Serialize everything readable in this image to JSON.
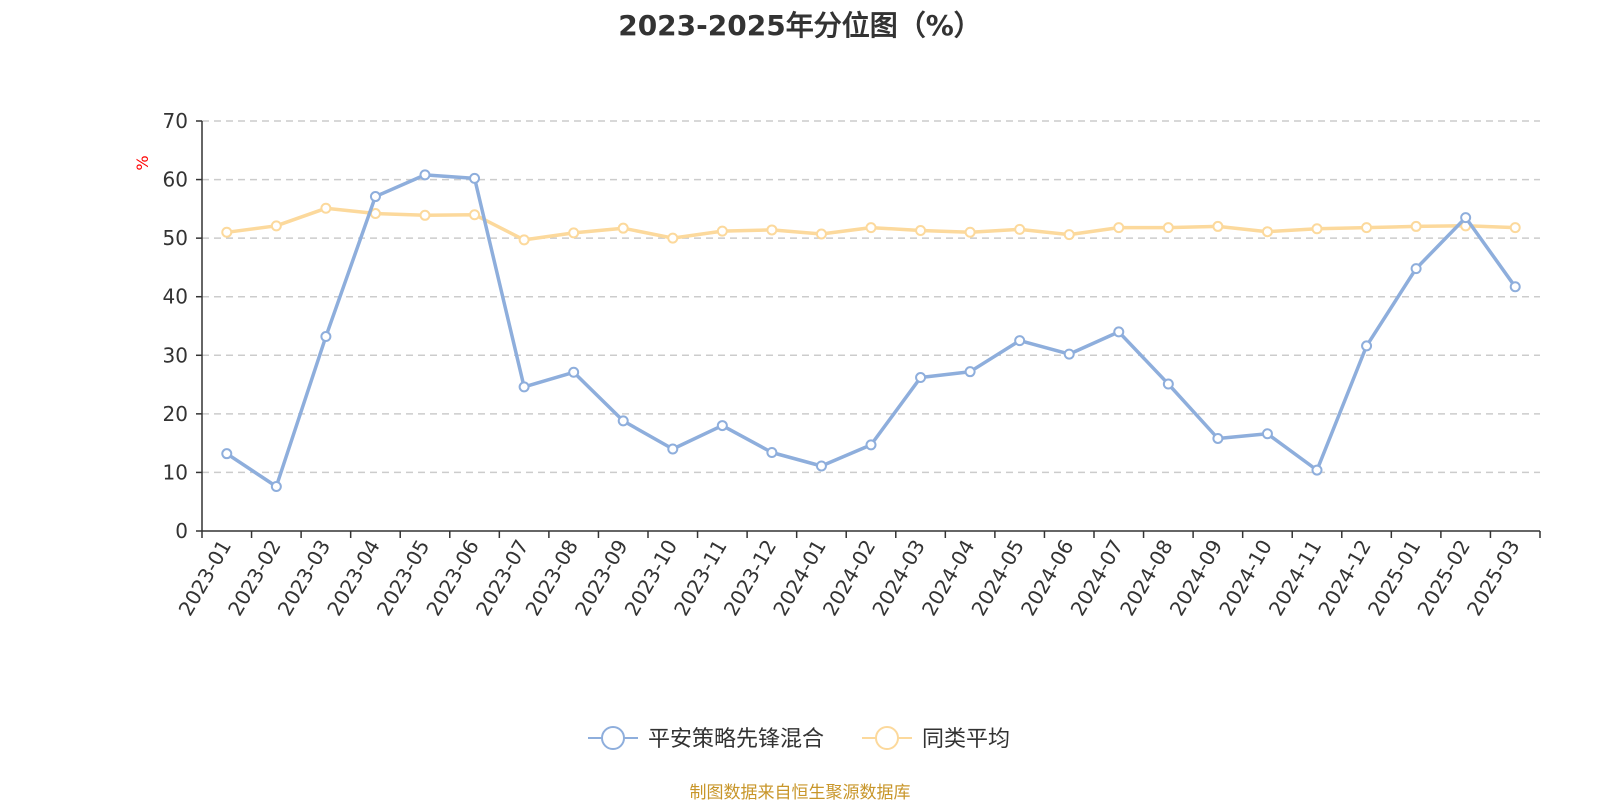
{
  "chart_data": {
    "type": "line",
    "title": "2023-2025年分位图（%）",
    "ylabel": "%",
    "xlabel": "",
    "ylim": [
      0,
      70
    ],
    "yticks": [
      0,
      10,
      20,
      30,
      40,
      50,
      60,
      70
    ],
    "grid": true,
    "legend_position": "bottom-center",
    "categories": [
      "2023-01",
      "2023-02",
      "2023-03",
      "2023-04",
      "2023-05",
      "2023-06",
      "2023-07",
      "2023-08",
      "2023-09",
      "2023-10",
      "2023-11",
      "2023-12",
      "2024-01",
      "2024-02",
      "2024-03",
      "2024-04",
      "2024-05",
      "2024-06",
      "2024-07",
      "2024-08",
      "2024-09",
      "2024-10",
      "2024-11",
      "2024-12",
      "2025-01",
      "2025-02",
      "2025-03"
    ],
    "series": [
      {
        "name": "平安策略先锋混合",
        "color": "#8eaedc",
        "values": [
          13.2,
          7.6,
          33.2,
          57.1,
          60.8,
          60.2,
          24.6,
          27.1,
          18.8,
          14.0,
          18.0,
          13.4,
          11.1,
          14.7,
          26.2,
          27.2,
          32.5,
          30.2,
          34.0,
          25.1,
          15.8,
          16.6,
          10.4,
          31.6,
          44.8,
          53.5,
          41.7
        ]
      },
      {
        "name": "同类平均",
        "color": "#fcd99c",
        "values": [
          51.0,
          52.1,
          55.1,
          54.2,
          53.9,
          54.0,
          49.7,
          50.9,
          51.7,
          50.0,
          51.2,
          51.4,
          50.7,
          51.8,
          51.3,
          51.0,
          51.5,
          50.6,
          51.8,
          51.8,
          52.0,
          51.1,
          51.6,
          51.8,
          52.0,
          52.1,
          51.8
        ]
      }
    ]
  },
  "footer": {
    "source": "制图数据来自恒生聚源数据库"
  },
  "colors": {
    "axis": "#333333",
    "grid": "#cccccc",
    "ylabel": "#ff0000",
    "footer": "#c8962a"
  }
}
